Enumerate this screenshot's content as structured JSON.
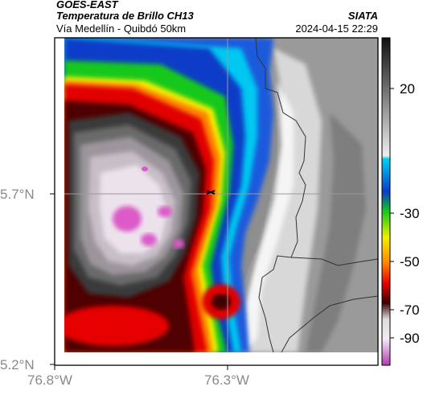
{
  "header": {
    "satellite": "GOES-EAST",
    "product": "Temperatura de Brillo CH13",
    "route": "Vía Medellín - Quibdó 50km",
    "source": "SIATA",
    "timestamp": "2024-04-15 22:29"
  },
  "map": {
    "lat_labels": [
      "5.7°N",
      "5.2°N"
    ],
    "lon_labels": [
      "76.8°W",
      "76.3°W"
    ],
    "marker": "cross-marker"
  },
  "colorbar": {
    "tick_labels": [
      "20",
      "-30",
      "-50",
      "-70",
      "-90"
    ],
    "colors": {
      "warm_gray_dark": "#1a1a1a",
      "warm_gray_light": "#e0e0e0",
      "cyan": "#00c8f0",
      "blue": "#0a3cc8",
      "green": "#12c81e",
      "yellow": "#f0f000",
      "orange": "#ff8200",
      "red": "#e60000",
      "dark_red": "#500000",
      "black": "#000000",
      "pale": "#f0e6f0",
      "magenta": "#c846c8"
    }
  },
  "colors": {
    "surface_gray": "#8c8c8c",
    "surface_white": "#f5f5f5",
    "cloud_gray": "#b4adb4",
    "cloud_dark": "#4a4a4a",
    "cloud_pale": "#e6dce6",
    "cloud_magenta": "#dc5ac8",
    "border_line": "#333333"
  }
}
